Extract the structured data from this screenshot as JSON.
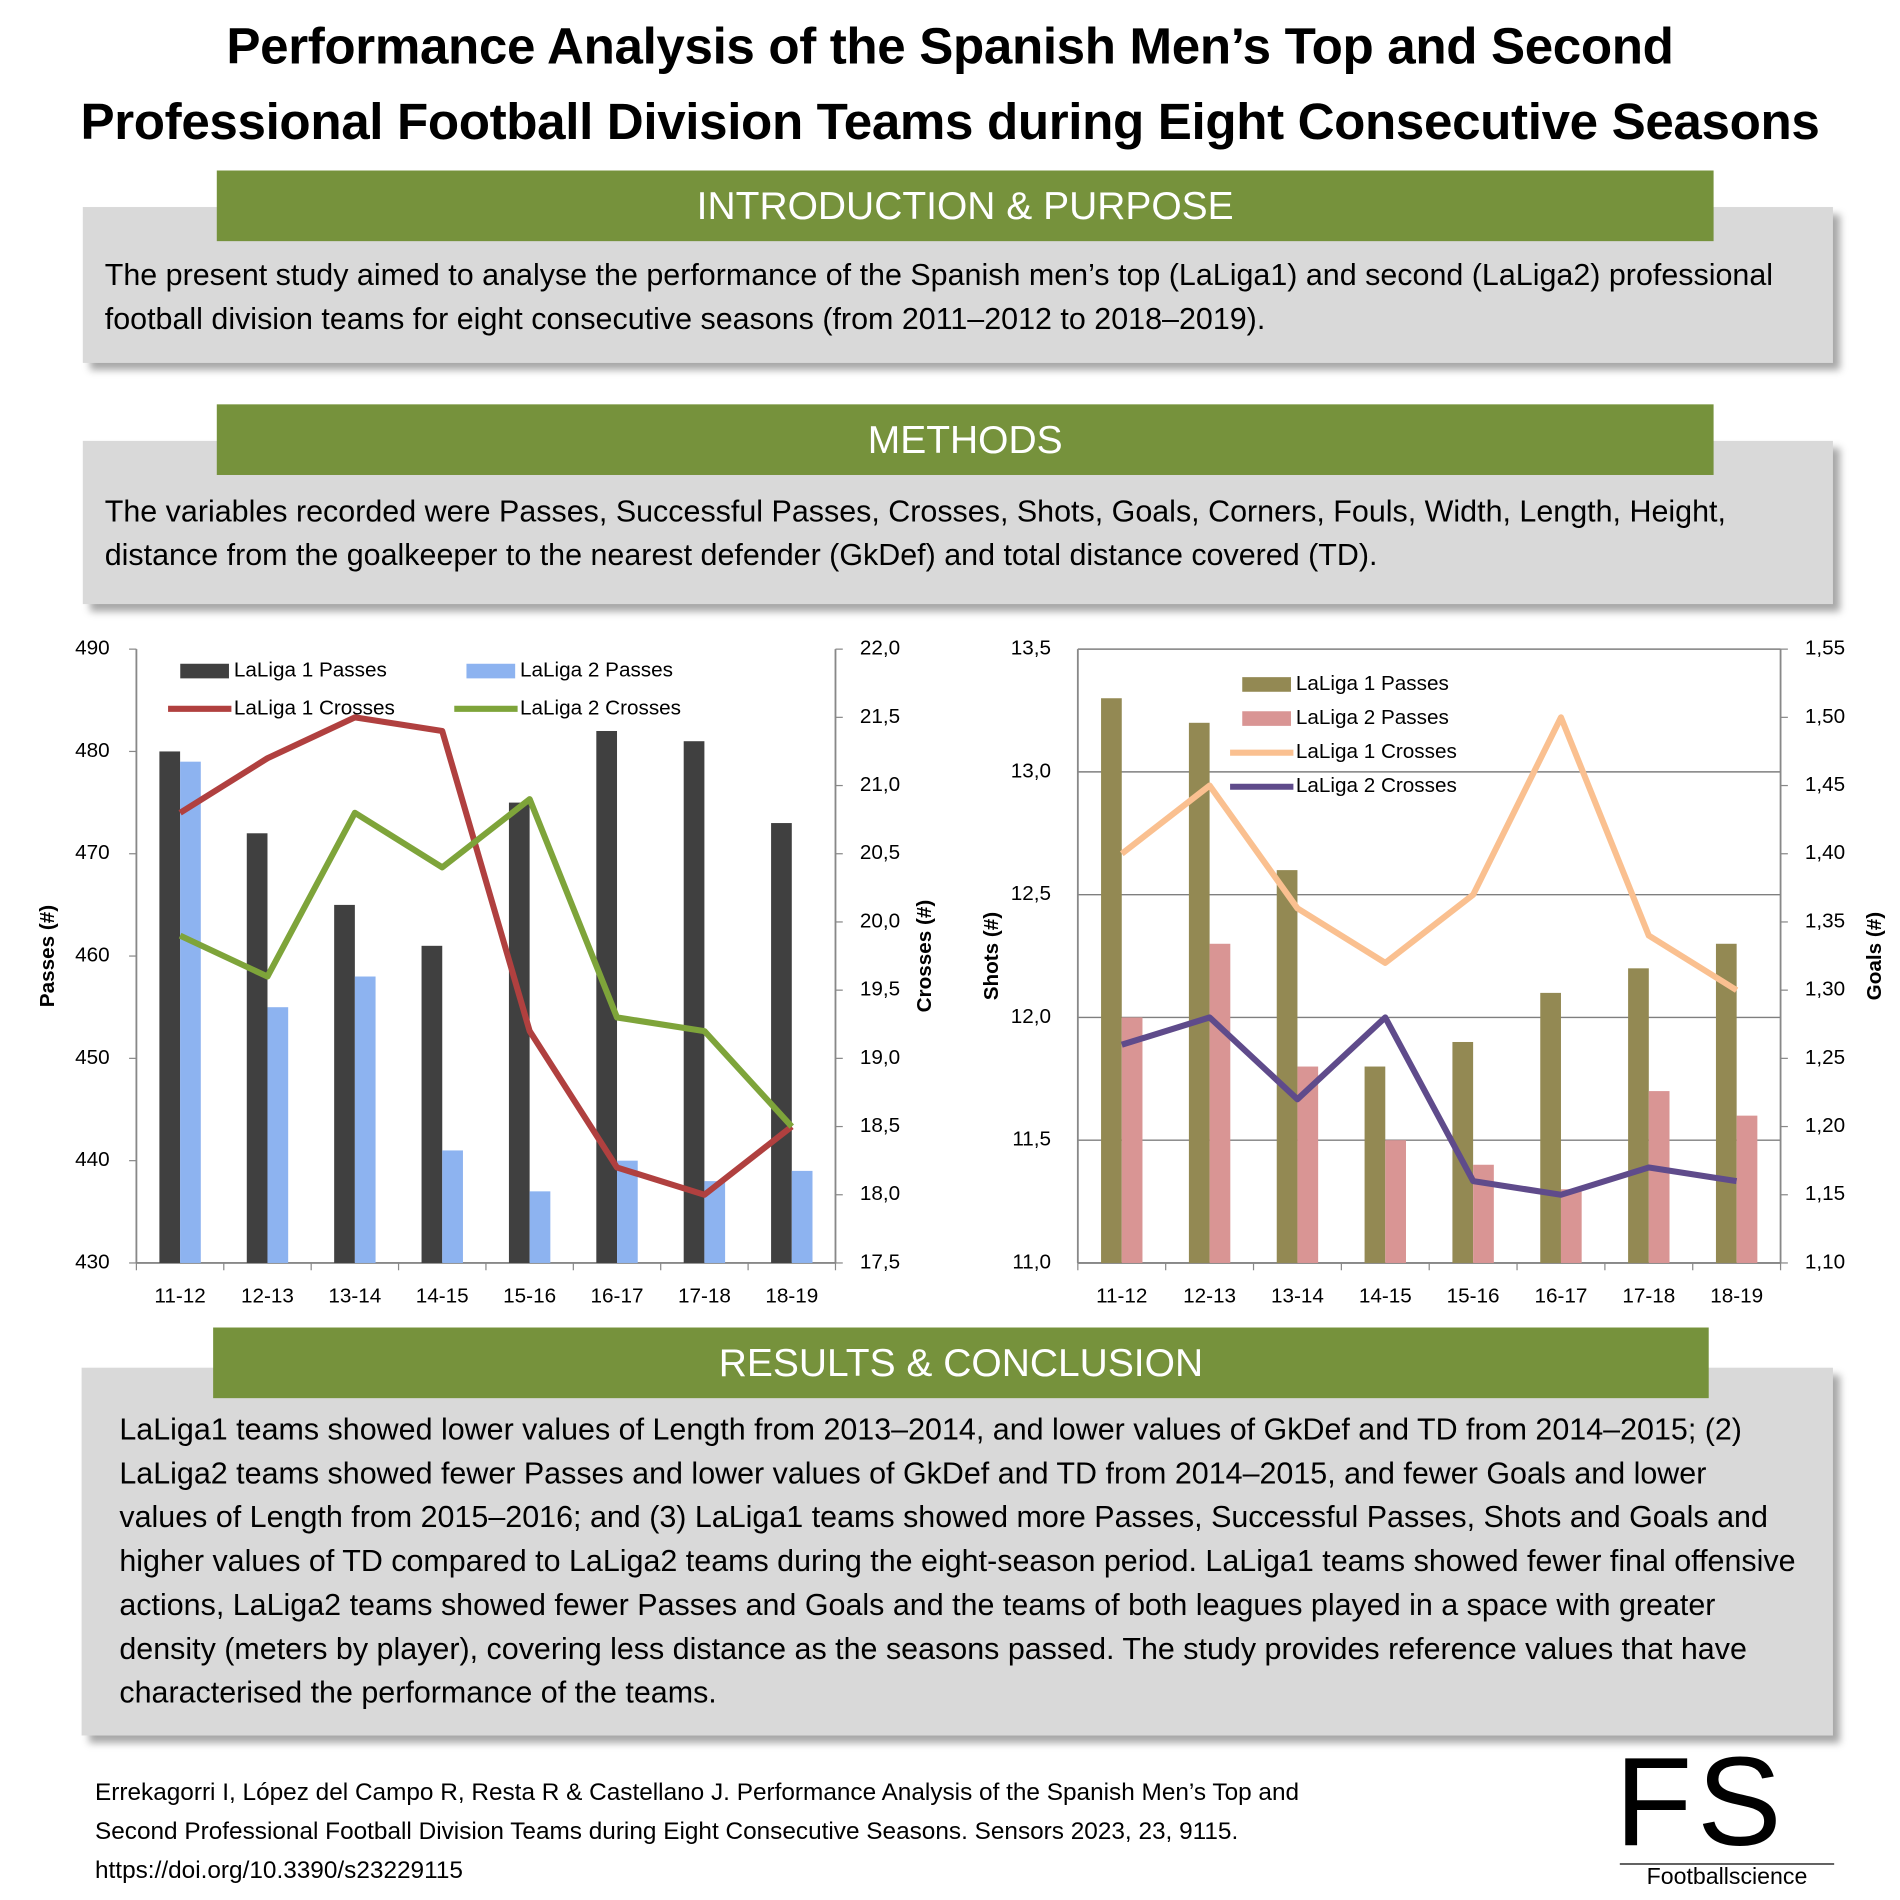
{
  "title_lines": [
    "Performance Analysis of the Spanish Men’s Top and Second",
    "Professional Football Division Teams during Eight Consecutive Seasons"
  ],
  "sections": [
    {
      "heading": "INTRODUCTION & PURPOSE",
      "text": "The present study aimed to analyse the performance of the Spanish men’s top (LaLiga1) and second (LaLiga2) professional football division teams for eight consecutive seasons (from 2011–2012 to 2018–2019)."
    },
    {
      "heading": "METHODS",
      "text": "The variables recorded were Passes, Successful Passes, Crosses, Shots, Goals, Corners, Fouls, Width, Length, Height, distance from the goalkeeper to the nearest defender (GkDef) and total distance covered (TD)."
    },
    {
      "heading": "RESULTS & CONCLUSION",
      "text": "LaLiga1 teams showed lower values of Length from 2013–2014, and lower values of GkDef and TD from 2014–2015; (2) LaLiga2 teams showed fewer Passes and lower values of GkDef and TD from 2014–2015, and fewer Goals and lower values of Length from 2015–2016; and (3) LaLiga1 teams showed more Passes, Successful Passes, Shots and Goals and higher values of TD compared to LaLiga2 teams during the eight-season period. LaLiga1 teams showed fewer final offensive actions, LaLiga2 teams showed fewer Passes and Goals and the teams of both leagues played in a space with greater density (meters by player), covering less distance as the seasons passed. The study provides reference values that have characterised the performance of the teams."
    }
  ],
  "citation_lines": [
    "Errekagorri I, López del Campo R, Resta R & Castellano J. Performance Analysis of the Spanish Men’s Top and",
    "Second Professional Football Division Teams during Eight Consecutive Seasons. Sensors 2023, 23, 9115.",
    "https://doi.org/10.3390/s23229115"
  ],
  "logo": {
    "mark": "FS",
    "name": "Footballscience"
  },
  "chart_data": [
    {
      "type": "bar",
      "y_label": "Passes (#)",
      "y2_label": "Crosses (#)",
      "grid": false,
      "categories": [
        "11-12",
        "12-13",
        "13-14",
        "14-15",
        "15-16",
        "16-17",
        "17-18",
        "18-19"
      ],
      "ylim": [
        430,
        490
      ],
      "yticks": [
        430,
        440,
        450,
        460,
        470,
        480,
        490
      ],
      "y2lim": [
        17.5,
        22.0
      ],
      "y2ticks": [
        {
          "value": 17.5,
          "label": "17,5"
        },
        {
          "value": 18.0,
          "label": "18,0"
        },
        {
          "value": 18.5,
          "label": "18,5"
        },
        {
          "value": 19.0,
          "label": "19,0"
        },
        {
          "value": 19.5,
          "label": "19,5"
        },
        {
          "value": 20.0,
          "label": "20,0"
        },
        {
          "value": 20.5,
          "label": "20,5"
        },
        {
          "value": 21.0,
          "label": "21,0"
        },
        {
          "value": 21.5,
          "label": "21,5"
        },
        {
          "value": 22.0,
          "label": "22,0"
        }
      ],
      "series": [
        {
          "name": "LaLiga 1 Passes",
          "type": "bar",
          "color": "#404040",
          "values": [
            480,
            472,
            465,
            461,
            475,
            482,
            481,
            473
          ]
        },
        {
          "name": "LaLiga 2 Passes",
          "type": "bar",
          "color": "#8db3f0",
          "values": [
            479,
            455,
            458,
            441,
            437,
            440,
            438,
            439
          ]
        },
        {
          "name": "LaLiga 1 Crosses",
          "type": "line",
          "axis": "y2",
          "color": "#b0403f",
          "values": [
            20.8,
            21.2,
            21.5,
            21.4,
            19.2,
            18.2,
            18.0,
            18.5
          ]
        },
        {
          "name": "LaLiga 2 Crosses",
          "type": "line",
          "axis": "y2",
          "color": "#7ea43a",
          "values": [
            19.9,
            19.6,
            20.8,
            20.4,
            20.9,
            19.3,
            19.2,
            18.5
          ]
        }
      ]
    },
    {
      "type": "bar",
      "y_label": "Shots (#)",
      "y2_label": "Goals (#)",
      "grid": true,
      "categories": [
        "11-12",
        "12-13",
        "13-14",
        "14-15",
        "15-16",
        "16-17",
        "17-18",
        "18-19"
      ],
      "ylim": [
        11.0,
        13.5
      ],
      "yticks": [
        {
          "value": 11.0,
          "label": "11,0"
        },
        {
          "value": 11.5,
          "label": "11,5"
        },
        {
          "value": 12.0,
          "label": "12,0"
        },
        {
          "value": 12.5,
          "label": "12,5"
        },
        {
          "value": 13.0,
          "label": "13,0"
        },
        {
          "value": 13.5,
          "label": "13,5"
        }
      ],
      "y2lim": [
        1.1,
        1.55
      ],
      "y2ticks": [
        {
          "value": 1.1,
          "label": "1,10"
        },
        {
          "value": 1.15,
          "label": "1,15"
        },
        {
          "value": 1.2,
          "label": "1,20"
        },
        {
          "value": 1.25,
          "label": "1,25"
        },
        {
          "value": 1.3,
          "label": "1,30"
        },
        {
          "value": 1.35,
          "label": "1,35"
        },
        {
          "value": 1.4,
          "label": "1,40"
        },
        {
          "value": 1.45,
          "label": "1,45"
        },
        {
          "value": 1.5,
          "label": "1,50"
        },
        {
          "value": 1.55,
          "label": "1,55"
        }
      ],
      "series": [
        {
          "name": "LaLiga 1 Passes",
          "type": "bar",
          "color": "#938953",
          "values": [
            13.3,
            13.2,
            12.6,
            11.8,
            11.9,
            12.1,
            12.2,
            12.3
          ]
        },
        {
          "name": "LaLiga 2 Passes",
          "type": "bar",
          "color": "#d99594",
          "values": [
            12.0,
            12.3,
            11.8,
            11.5,
            11.4,
            11.3,
            11.7,
            11.6
          ]
        },
        {
          "name": "LaLiga 1 Crosses",
          "type": "line",
          "axis": "y2",
          "color": "#fac090",
          "values": [
            1.4,
            1.45,
            1.36,
            1.32,
            1.37,
            1.5,
            1.34,
            1.3
          ]
        },
        {
          "name": "LaLiga 2 Crosses",
          "type": "line",
          "axis": "y2",
          "color": "#5f4b8b",
          "values": [
            1.26,
            1.28,
            1.22,
            1.28,
            1.16,
            1.15,
            1.17,
            1.16
          ]
        }
      ]
    }
  ]
}
